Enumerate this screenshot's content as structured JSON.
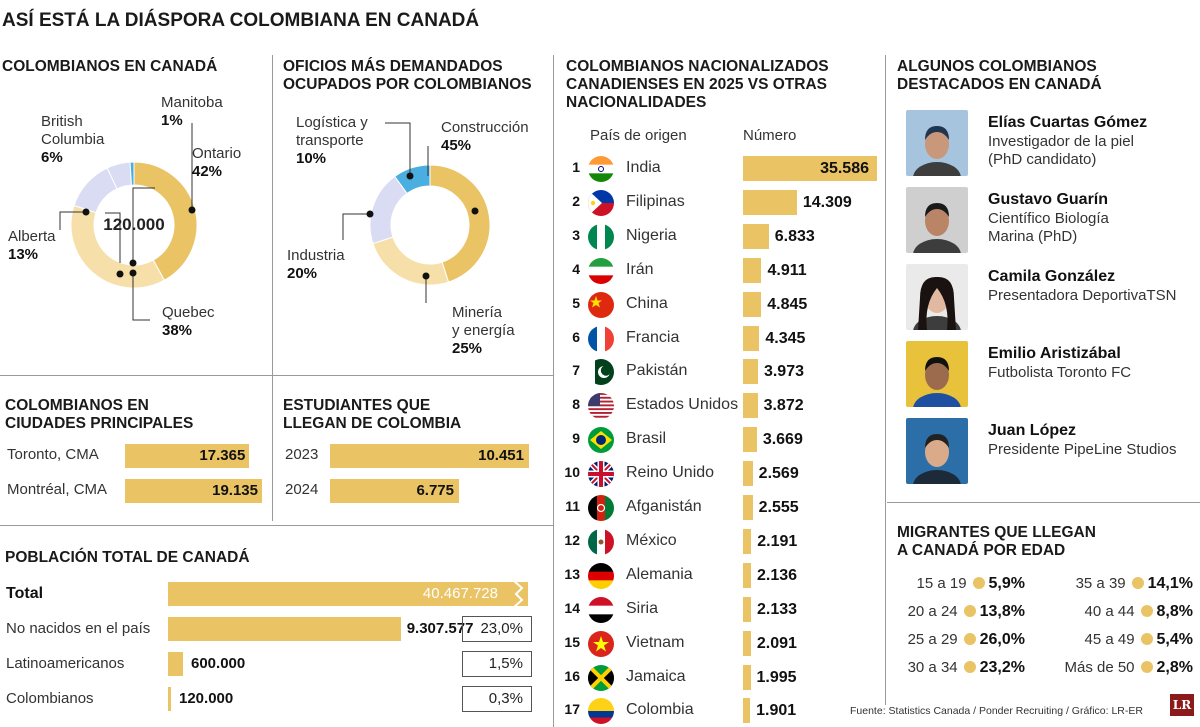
{
  "title": "ASÍ ESTÁ LA DIÁSPORA COLOMBIANA EN CANADÁ",
  "colors": {
    "gold": "#e9c364",
    "light": "#f6dfa8",
    "lavender": "#d9dcf2",
    "blue": "#4aaee0",
    "text": "#222222"
  },
  "chart_data": [
    {
      "type": "pie",
      "id": "colombianos_en_canada",
      "title": "COLOMBIANOS EN CANADÁ",
      "center_label": "120.000",
      "slices": [
        {
          "name": "Ontario",
          "label": "42%",
          "value": 42
        },
        {
          "name": "Quebec",
          "label": "38%",
          "value": 38
        },
        {
          "name": "Alberta",
          "label": "13%",
          "value": 13
        },
        {
          "name": "British Columbia",
          "label": "6%",
          "value": 6
        },
        {
          "name": "Manitoba",
          "label": "1%",
          "value": 1
        }
      ]
    },
    {
      "type": "pie",
      "id": "oficios",
      "title": "OFICIOS MÁS DEMANDADOS OCUPADOS POR COLOMBIANOS",
      "title_lines": [
        "OFICIOS MÁS DEMANDADOS",
        "OCUPADOS POR COLOMBIANOS"
      ],
      "slices": [
        {
          "name": "Construcción",
          "label": "45%",
          "value": 45
        },
        {
          "name": "Minería y energía",
          "label": "25%",
          "value": 25
        },
        {
          "name": "Industria",
          "label": "20%",
          "value": 20
        },
        {
          "name": "Logística y transporte",
          "label": "10%",
          "value": 10
        }
      ]
    },
    {
      "type": "bar",
      "id": "ciudades",
      "title": "COLOMBIANOS EN CIUDADES PRINCIPALES",
      "title_lines": [
        "COLOMBIANOS EN",
        "CIUDADES PRINCIPALES"
      ],
      "categories": [
        "Toronto, CMA",
        "Montréal, CMA"
      ],
      "values": [
        17365,
        19135
      ],
      "value_labels": [
        "17.365",
        "19.135"
      ]
    },
    {
      "type": "bar",
      "id": "estudiantes",
      "title": "ESTUDIANTES QUE LLEGAN DE COLOMBIA",
      "title_lines": [
        "ESTUDIANTES QUE",
        "LLEGAN DE COLOMBIA"
      ],
      "categories": [
        "2023",
        "2024"
      ],
      "values": [
        10451,
        6775
      ],
      "value_labels": [
        "10.451",
        "6.775"
      ]
    },
    {
      "type": "bar",
      "id": "poblacion",
      "title": "POBLACIÓN TOTAL DE CANADÁ",
      "categories": [
        "Total",
        "No nacidos en el país",
        "Latinoamericanos",
        "Colombianos"
      ],
      "values": [
        40467728,
        9307577,
        600000,
        120000
      ],
      "value_labels": [
        "40.467.728",
        "9.307.577",
        "600.000",
        "120.000"
      ],
      "percent_labels": [
        "",
        "23,0%",
        "1,5%",
        "0,3%"
      ]
    },
    {
      "type": "bar",
      "id": "nacionalizados",
      "title": "COLOMBIANOS NACIONALIZADOS CANADIENSES EN 2025 VS OTRAS NACIONALIDADES",
      "title_lines": [
        "COLOMBIANOS NACIONALIZADOS",
        "CANADIENSES EN 2025 VS OTRAS",
        "NACIONALIDADES"
      ],
      "col_country": "País de origen",
      "col_number": "Número",
      "categories": [
        "India",
        "Filipinas",
        "Nigeria",
        "Irán",
        "China",
        "Francia",
        "Pakistán",
        "Estados Unidos",
        "Brasil",
        "Reino Unido",
        "Afganistán",
        "México",
        "Alemania",
        "Siria",
        "Vietnam",
        "Jamaica",
        "Colombia"
      ],
      "ranks": [
        "1",
        "2",
        "3",
        "4",
        "5",
        "6",
        "7",
        "8",
        "9",
        "10",
        "11",
        "12",
        "13",
        "14",
        "15",
        "16",
        "17"
      ],
      "values": [
        35586,
        14309,
        6833,
        4911,
        4845,
        4345,
        3973,
        3872,
        3669,
        2569,
        2555,
        2191,
        2136,
        2133,
        2091,
        1995,
        1901
      ],
      "value_labels": [
        "35.586",
        "14.309",
        "6.833",
        "4.911",
        "4.845",
        "4.345",
        "3.973",
        "3.872",
        "3.669",
        "2.569",
        "2.555",
        "2.191",
        "2.136",
        "2.133",
        "2.091",
        "1.995",
        "1.901"
      ]
    },
    {
      "type": "table",
      "id": "edad",
      "title": "MIGRANTES QUE LLEGAN A CANADÁ POR EDAD",
      "title_lines": [
        "MIGRANTES QUE LLEGAN",
        "A CANADÁ POR EDAD"
      ],
      "rows": [
        {
          "age": "15 a 19",
          "pct": "5,9%"
        },
        {
          "age": "20 a 24",
          "pct": "13,8%"
        },
        {
          "age": "25 a 29",
          "pct": "26,0%"
        },
        {
          "age": "30 a 34",
          "pct": "23,2%"
        },
        {
          "age": "35 a 39",
          "pct": "14,1%"
        },
        {
          "age": "40 a 44",
          "pct": "8,8%"
        },
        {
          "age": "45 a 49",
          "pct": "5,4%"
        },
        {
          "age": "Más de 50",
          "pct": "2,8%"
        }
      ]
    }
  ],
  "destacados": {
    "title_lines": [
      "ALGUNOS COLOMBIANOS",
      "DESTACADOS EN CANADÁ"
    ],
    "people": [
      {
        "name": "Elías Cuartas Gómez",
        "desc": [
          "Investigador de la piel",
          "(PhD candidato)"
        ]
      },
      {
        "name": "Gustavo Guarín",
        "desc": [
          "Científico Biología",
          "Marina (PhD)"
        ]
      },
      {
        "name": "Camila González",
        "desc": [
          "Presentadora DeportivaTSN"
        ]
      },
      {
        "name": "Emilio Aristizábal",
        "desc": [
          "Futbolista Toronto FC"
        ]
      },
      {
        "name": "Juan López",
        "desc": [
          "Presidente PipeLine Studios"
        ]
      }
    ]
  },
  "source": "Fuente: Statistics Canada / Ponder Recruiting / Gráfico: LR-ER",
  "logo": "LR"
}
